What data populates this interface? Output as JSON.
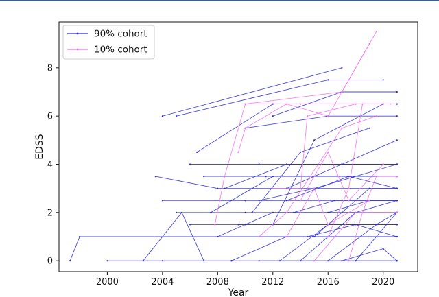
{
  "chart_data": {
    "type": "line",
    "xlabel": "Year",
    "ylabel": "EDSS",
    "xlim": [
      1996.5,
      2022.5
    ],
    "ylim": [
      -0.45,
      9.9
    ],
    "xticks": [
      2000,
      2004,
      2008,
      2012,
      2016,
      2020
    ],
    "yticks": [
      0,
      2,
      4,
      6,
      8
    ],
    "legend_position": "top-left",
    "series": [
      {
        "name": "90% cohort",
        "color": "#2a2ad6",
        "trajectories": [
          [
            [
              1997.3,
              0
            ],
            [
              1998.0,
              1
            ],
            [
              2021.0,
              1
            ]
          ],
          [
            [
              2000.0,
              0
            ],
            [
              2004.0,
              0
            ],
            [
              2009.0,
              0
            ],
            [
              2021.0,
              0
            ]
          ],
          [
            [
              2002.6,
              0
            ],
            [
              2005.4,
              2
            ],
            [
              2007.0,
              0
            ]
          ],
          [
            [
              2004.0,
              6
            ],
            [
              2017.0,
              8
            ]
          ],
          [
            [
              2005.0,
              6
            ],
            [
              2016.0,
              7.5
            ],
            [
              2020.0,
              7.5
            ]
          ],
          [
            [
              2006.0,
              1.5
            ],
            [
              2010.0,
              1.5
            ],
            [
              2021.0,
              1.5
            ]
          ],
          [
            [
              2006.5,
              4.5
            ],
            [
              2012.0,
              6.5
            ],
            [
              2021.0,
              6.5
            ]
          ],
          [
            [
              2004.0,
              2.5
            ],
            [
              2010.0,
              2.5
            ],
            [
              2021.0,
              2.5
            ]
          ],
          [
            [
              2007.5,
              2.0
            ],
            [
              2012.0,
              3.5
            ],
            [
              2021.0,
              3.5
            ]
          ],
          [
            [
              2006.0,
              4.0
            ],
            [
              2011.0,
              4.0
            ],
            [
              2021.0,
              4.0
            ]
          ],
          [
            [
              2003.5,
              3.5
            ],
            [
              2008.0,
              3.0
            ],
            [
              2021.0,
              3.0
            ]
          ],
          [
            [
              2010.0,
              5.5
            ],
            [
              2016.0,
              6.0
            ],
            [
              2021.0,
              6.0
            ]
          ],
          [
            [
              2009.0,
              0
            ],
            [
              2013.0,
              1.0
            ],
            [
              2021.0,
              1.0
            ]
          ],
          [
            [
              2008.0,
              1.0
            ],
            [
              2012.0,
              2.0
            ],
            [
              2021.0,
              2.0
            ]
          ],
          [
            [
              2011.0,
              2.5
            ],
            [
              2015.0,
              3.0
            ],
            [
              2021.0,
              4.0
            ]
          ],
          [
            [
              2012.5,
              0
            ],
            [
              2016.0,
              1.5
            ],
            [
              2021.0,
              1.5
            ]
          ],
          [
            [
              2013.0,
              3.0
            ],
            [
              2017.0,
              4.0
            ],
            [
              2021.0,
              5.0
            ]
          ],
          [
            [
              2014.0,
              0
            ],
            [
              2018.0,
              2.0
            ],
            [
              2021.0,
              2.5
            ]
          ],
          [
            [
              2015.0,
              1.0
            ],
            [
              2019.0,
              3.0
            ],
            [
              2021.0,
              3.0
            ]
          ],
          [
            [
              2016.0,
              0
            ],
            [
              2019.5,
              1.5
            ],
            [
              2021.0,
              2.0
            ]
          ],
          [
            [
              2012.0,
              1.5
            ],
            [
              2015.0,
              5.0
            ],
            [
              2020.0,
              6.5
            ]
          ],
          [
            [
              2010.5,
              2.0
            ],
            [
              2014.0,
              4.5
            ],
            [
              2019.0,
              5.5
            ]
          ],
          [
            [
              2017.0,
              0
            ],
            [
              2020.0,
              0.5
            ],
            [
              2021.0,
              0
            ]
          ],
          [
            [
              2011.0,
              0
            ],
            [
              2021.0,
              0
            ]
          ],
          [
            [
              2013.5,
              2.0
            ],
            [
              2016.5,
              2.5
            ],
            [
              2021.0,
              2.5
            ]
          ],
          [
            [
              2008.5,
              3.0
            ],
            [
              2013.0,
              4.0
            ],
            [
              2021.0,
              4.0
            ]
          ],
          [
            [
              2014.5,
              1.0
            ],
            [
              2018.0,
              1.5
            ],
            [
              2021.0,
              1.0
            ]
          ],
          [
            [
              2018.0,
              0
            ],
            [
              2021.0,
              2.0
            ]
          ],
          [
            [
              2005.0,
              2.0
            ],
            [
              2010.0,
              2.0
            ],
            [
              2021.0,
              2.0
            ]
          ],
          [
            [
              2009.5,
              1.5
            ],
            [
              2012.0,
              1.5
            ],
            [
              2021.0,
              1.5
            ]
          ],
          [
            [
              2012.0,
              6.0
            ],
            [
              2017.0,
              7.0
            ],
            [
              2021.0,
              7.0
            ]
          ],
          [
            [
              2013.0,
              2.5
            ],
            [
              2017.5,
              3.5
            ],
            [
              2021.0,
              3.0
            ]
          ],
          [
            [
              2016.0,
              2.0
            ],
            [
              2019.0,
              2.5
            ],
            [
              2021.0,
              2.5
            ]
          ],
          [
            [
              2007.0,
              3.5
            ],
            [
              2011.5,
              3.5
            ],
            [
              2021.0,
              3.5
            ]
          ]
        ]
      },
      {
        "name": "10% cohort",
        "color": "#ee70ee",
        "trajectories": [
          [
            [
              2007.8,
              1.5
            ],
            [
              2008.5,
              3.5
            ],
            [
              2010.0,
              6.5
            ],
            [
              2017.0,
              7.0
            ],
            [
              2019.5,
              9.5
            ]
          ],
          [
            [
              2010.0,
              6.5
            ],
            [
              2014.0,
              6.5
            ],
            [
              2018.0,
              6.5
            ],
            [
              2020.0,
              6.5
            ]
          ],
          [
            [
              2009.5,
              4.5
            ],
            [
              2010.0,
              5.5
            ],
            [
              2013.0,
              6.5
            ],
            [
              2016.0,
              6.0
            ],
            [
              2019.0,
              9.0
            ]
          ],
          [
            [
              2012.0,
              3.0
            ],
            [
              2014.0,
              3.0
            ],
            [
              2014.5,
              6.0
            ],
            [
              2018.0,
              6.5
            ]
          ],
          [
            [
              2011.0,
              1.0
            ],
            [
              2013.0,
              2.0
            ],
            [
              2017.0,
              5.5
            ],
            [
              2019.5,
              6.0
            ]
          ],
          [
            [
              2014.0,
              2.5
            ],
            [
              2016.0,
              4.5
            ],
            [
              2017.5,
              2.5
            ],
            [
              2020.0,
              4.0
            ]
          ],
          [
            [
              2015.0,
              0
            ],
            [
              2018.0,
              2.0
            ],
            [
              2021.0,
              2.0
            ]
          ],
          [
            [
              2016.0,
              1.0
            ],
            [
              2017.5,
              3.0
            ],
            [
              2018.5,
              6.5
            ],
            [
              2020.5,
              6.5
            ]
          ],
          [
            [
              2017.5,
              0
            ],
            [
              2018.5,
              2.0
            ],
            [
              2019.5,
              3.5
            ],
            [
              2021.0,
              3.5
            ]
          ],
          [
            [
              2013.0,
              1.0
            ],
            [
              2015.0,
              3.0
            ],
            [
              2016.0,
              1.5
            ],
            [
              2019.0,
              2.5
            ]
          ]
        ]
      }
    ]
  }
}
